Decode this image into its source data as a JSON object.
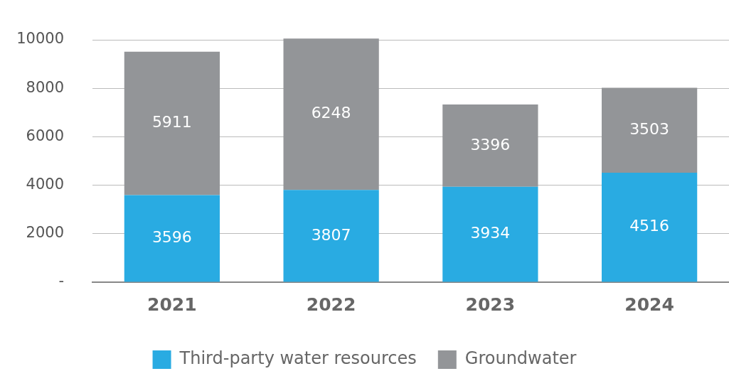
{
  "chart_data": {
    "type": "bar",
    "stacked": true,
    "categories": [
      "2021",
      "2022",
      "2023",
      "2024"
    ],
    "series": [
      {
        "name": "Third-party water resources",
        "color": "#29abe2",
        "values": [
          3596,
          3807,
          3934,
          4516
        ]
      },
      {
        "name": "Groundwater",
        "color": "#939598",
        "values": [
          5911,
          6248,
          3396,
          3503
        ]
      }
    ],
    "ylim": [
      0,
      10100
    ],
    "yticks": [
      {
        "value": 0,
        "label": "-"
      },
      2000,
      4000,
      6000,
      8000,
      10000
    ],
    "grid": "y",
    "legend": "bottom",
    "data_labels": true
  }
}
